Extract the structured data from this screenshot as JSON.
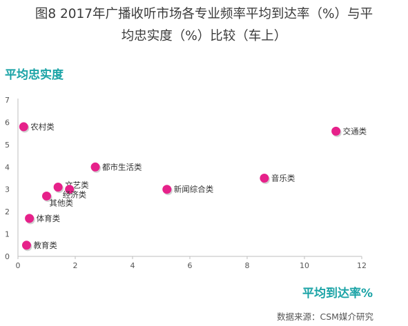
{
  "title_line1": "图8 2017年广播收听市场各专业频率平均到达率（%）与平",
  "title_line2": "均忠实度（%）比较（车上）",
  "source": "数据来源：CSM媒介研究",
  "colors": {
    "point": "#e6218a",
    "axis_title": "#1aa3a6",
    "text": "#333333"
  },
  "chart_data": {
    "type": "scatter",
    "xlabel": "平均到达率%",
    "ylabel": "平均忠实度",
    "xlim": [
      0,
      12
    ],
    "ylim": [
      0,
      7
    ],
    "xticks": [
      0,
      2,
      4,
      6,
      8,
      10,
      12
    ],
    "yticks": [
      0,
      1,
      2,
      3,
      4,
      5,
      6,
      7
    ],
    "grid": false,
    "points": [
      {
        "label": "农村类",
        "x": 0.2,
        "y": 5.8
      },
      {
        "label": "交通类",
        "x": 11.1,
        "y": 5.6
      },
      {
        "label": "都市生活类",
        "x": 2.7,
        "y": 4.0
      },
      {
        "label": "音乐类",
        "x": 8.6,
        "y": 3.5
      },
      {
        "label": "文艺类",
        "x": 1.4,
        "y": 3.1
      },
      {
        "label": "经济类",
        "x": 1.8,
        "y": 3.0
      },
      {
        "label": "新闻综合类",
        "x": 5.2,
        "y": 3.0
      },
      {
        "label": "其他类",
        "x": 1.0,
        "y": 2.7
      },
      {
        "label": "体育类",
        "x": 0.4,
        "y": 1.7
      },
      {
        "label": "教育类",
        "x": 0.3,
        "y": 0.5
      }
    ]
  }
}
